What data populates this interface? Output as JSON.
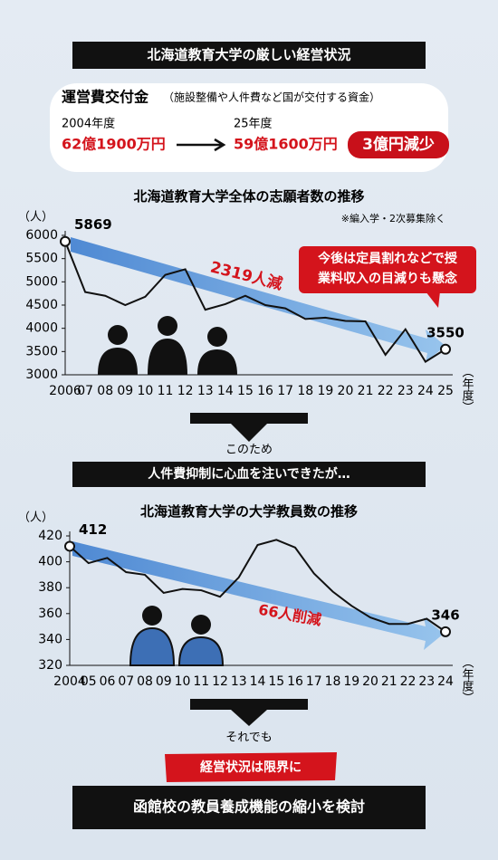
{
  "header": {
    "title": "北海道教育大学の厳しい経営状況"
  },
  "subsidy": {
    "label": "運営費交付金",
    "note": "（施設整備や人件費など国が交付する資金）",
    "from_year": "2004年度",
    "from_amount": "62億1900万円",
    "to_year": "25年度",
    "to_amount": "59億1600万円",
    "change": "3億円減少"
  },
  "chart_data": [
    {
      "type": "line",
      "title": "北海道教育大学全体の志願者数の推移",
      "note": "※編入学・2次募集除く",
      "y_unit": "（人）",
      "x_unit": "（年度）",
      "color": "#111111",
      "categories": [
        "2006",
        "07",
        "08",
        "09",
        "10",
        "11",
        "12",
        "13",
        "14",
        "15",
        "16",
        "17",
        "18",
        "19",
        "20",
        "21",
        "22",
        "23",
        "24",
        "25"
      ],
      "values": [
        5869,
        4780,
        4700,
        4500,
        4680,
        5150,
        5270,
        4400,
        4520,
        4700,
        4500,
        4430,
        4200,
        4230,
        4160,
        4150,
        3430,
        3980,
        3280,
        3550
      ],
      "ylim": [
        3000,
        6000
      ],
      "yticks": [
        3000,
        3500,
        4000,
        4500,
        5000,
        5500,
        6000
      ],
      "annotation": "2319人減",
      "callout": [
        "今後は定員割れなどで授",
        "業料収入の目減りも懸念"
      ]
    },
    {
      "type": "line",
      "title": "北海道教育大学の大学教員数の推移",
      "y_unit": "（人）",
      "x_unit": "（年度）",
      "color": "#111111",
      "categories": [
        "2004",
        "05",
        "06",
        "07",
        "08",
        "09",
        "10",
        "11",
        "12",
        "13",
        "14",
        "15",
        "16",
        "17",
        "18",
        "19",
        "20",
        "21",
        "22",
        "23",
        "24"
      ],
      "values": [
        412,
        399,
        403,
        392,
        390,
        376,
        379,
        378,
        373,
        388,
        413,
        417,
        411,
        391,
        377,
        366,
        357,
        352,
        352,
        356,
        346
      ],
      "ylim": [
        320,
        420
      ],
      "yticks": [
        320,
        340,
        360,
        380,
        400,
        420
      ],
      "annotation": "66人削減"
    }
  ],
  "flow": {
    "step1": "このため",
    "banner1": "人件費抑制に心血を注いできたが…",
    "step2": "それでも",
    "alert": "経営状況は限界に",
    "conclusion": "函館校の教員養成機能の縮小を検討"
  }
}
